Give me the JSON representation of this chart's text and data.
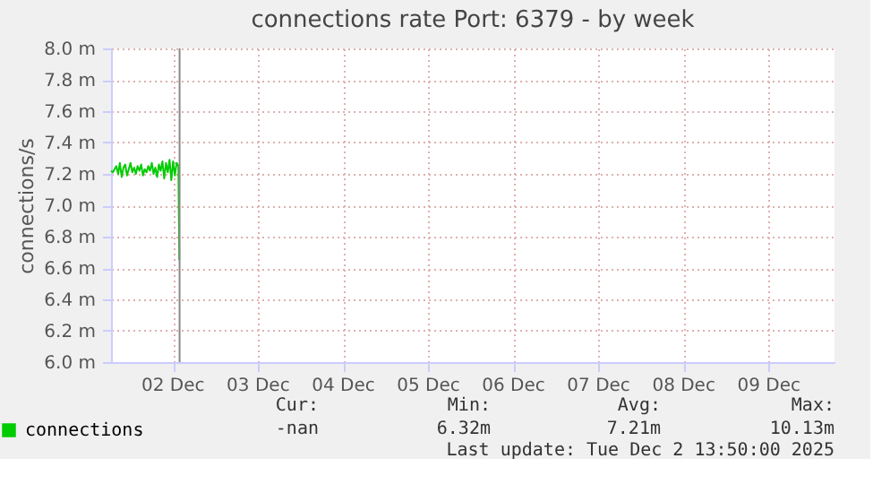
{
  "chart_data": {
    "type": "line",
    "title": "connections rate Port: 6379 - by week",
    "ylabel": "connections/s",
    "x": [
      "2025-12-01T18:30",
      "2025-12-01T19:00",
      "2025-12-01T19:30",
      "2025-12-01T20:00",
      "2025-12-01T20:30",
      "2025-12-01T21:00",
      "2025-12-01T21:30",
      "2025-12-01T22:00",
      "2025-12-01T22:30",
      "2025-12-01T23:00",
      "2025-12-01T23:30",
      "2025-12-02T00:00",
      "2025-12-02T00:30",
      "2025-12-02T01:00",
      "2025-12-02T01:30",
      "2025-12-02T02:00",
      "2025-12-02T02:30",
      "2025-12-02T03:00",
      "2025-12-02T03:30",
      "2025-12-02T04:00",
      "2025-12-02T04:30",
      "2025-12-02T05:00",
      "2025-12-02T05:30",
      "2025-12-02T06:00",
      "2025-12-02T06:30",
      "2025-12-02T07:00",
      "2025-12-02T07:30",
      "2025-12-02T08:00",
      "2025-12-02T08:30",
      "2025-12-02T09:00",
      "2025-12-02T09:30",
      "2025-12-02T10:00",
      "2025-12-02T10:30",
      "2025-12-02T11:00",
      "2025-12-02T11:30",
      "2025-12-02T12:00",
      "2025-12-02T12:30",
      "2025-12-02T13:00",
      "2025-12-02T13:30",
      "2025-12-02T13:45"
    ],
    "series": [
      {
        "name": "connections",
        "color": "#00cc00",
        "values": [
          7.22,
          7.21,
          7.23,
          7.25,
          7.2,
          7.27,
          7.18,
          7.24,
          7.26,
          7.19,
          7.23,
          7.27,
          7.21,
          7.24,
          7.2,
          7.25,
          7.22,
          7.26,
          7.19,
          7.23,
          7.21,
          7.25,
          7.22,
          7.27,
          7.2,
          7.24,
          7.18,
          7.26,
          7.22,
          7.28,
          7.17,
          7.27,
          7.21,
          7.29,
          7.16,
          7.28,
          7.19,
          7.27,
          7.25,
          6.65
        ]
      }
    ],
    "xlim": [
      "2025-12-01T18:30",
      "2025-12-10T06:30"
    ],
    "xticks": [
      {
        "value": "2025-12-02T12:00",
        "label": "02 Dec"
      },
      {
        "value": "2025-12-03T12:00",
        "label": "03 Dec"
      },
      {
        "value": "2025-12-04T12:00",
        "label": "04 Dec"
      },
      {
        "value": "2025-12-05T12:00",
        "label": "05 Dec"
      },
      {
        "value": "2025-12-06T12:00",
        "label": "06 Dec"
      },
      {
        "value": "2025-12-07T12:00",
        "label": "07 Dec"
      },
      {
        "value": "2025-12-08T12:00",
        "label": "08 Dec"
      },
      {
        "value": "2025-12-09T12:00",
        "label": "09 Dec"
      }
    ],
    "ylim": [
      6.0,
      8.0
    ],
    "yticks": [
      {
        "value": 6.0,
        "label": "6.0 m"
      },
      {
        "value": 6.2,
        "label": "6.2 m"
      },
      {
        "value": 6.4,
        "label": "6.4 m"
      },
      {
        "value": 6.6,
        "label": "6.6 m"
      },
      {
        "value": 6.8,
        "label": "6.8 m"
      },
      {
        "value": 7.0,
        "label": "7.0 m"
      },
      {
        "value": 7.2,
        "label": "7.2 m"
      },
      {
        "value": 7.4,
        "label": "7.4 m"
      },
      {
        "value": 7.6,
        "label": "7.6 m"
      },
      {
        "value": 7.8,
        "label": "7.8 m"
      },
      {
        "value": 8.0,
        "label": "8.0 m"
      }
    ],
    "ref_lines": [
      {
        "axis": "x",
        "value": "2025-12-02T13:50",
        "color": "#888888"
      }
    ],
    "grid": true,
    "legend": "bottom left",
    "annotations": [
      "Cur:",
      "Min:",
      "Avg:",
      "Max:",
      "-nan",
      "6.32m",
      "7.21m",
      "10.13m",
      "Last update: Tue Dec  2 13:50:00 2025"
    ]
  }
}
